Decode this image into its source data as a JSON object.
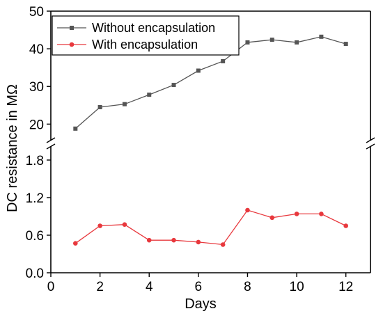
{
  "chart_data": {
    "type": "line",
    "xlabel": "Days",
    "ylabel": "DC resistance in MΩ",
    "xlim": [
      0,
      13
    ],
    "x_ticks": [
      0,
      2,
      4,
      6,
      8,
      10,
      12
    ],
    "y_axis_broken": true,
    "y_segments": [
      {
        "name": "upper",
        "ylim": [
          16,
          50
        ],
        "ticks": [
          20,
          30,
          40,
          50
        ]
      },
      {
        "name": "lower",
        "ylim": [
          0,
          2.0
        ],
        "ticks": [
          0.0,
          0.6,
          1.2,
          1.8
        ]
      }
    ],
    "legend_position": "top-left",
    "grid": false,
    "series": [
      {
        "name": "Without encapsulation",
        "color": "#555555",
        "marker": "square",
        "segment": "upper",
        "x": [
          1,
          2,
          3,
          4,
          5,
          6,
          7,
          8,
          9,
          10,
          11,
          12
        ],
        "values": [
          18.8,
          24.5,
          25.3,
          27.8,
          30.4,
          34.2,
          36.7,
          41.7,
          42.4,
          41.7,
          43.2,
          41.3
        ]
      },
      {
        "name": "With encapsulation",
        "color": "#e8383d",
        "marker": "circle",
        "segment": "lower",
        "x": [
          1,
          2,
          3,
          4,
          5,
          6,
          7,
          8,
          9,
          10,
          11,
          12
        ],
        "values": [
          0.47,
          0.75,
          0.77,
          0.52,
          0.52,
          0.49,
          0.45,
          1.0,
          0.88,
          0.94,
          0.94,
          0.75
        ]
      }
    ]
  }
}
